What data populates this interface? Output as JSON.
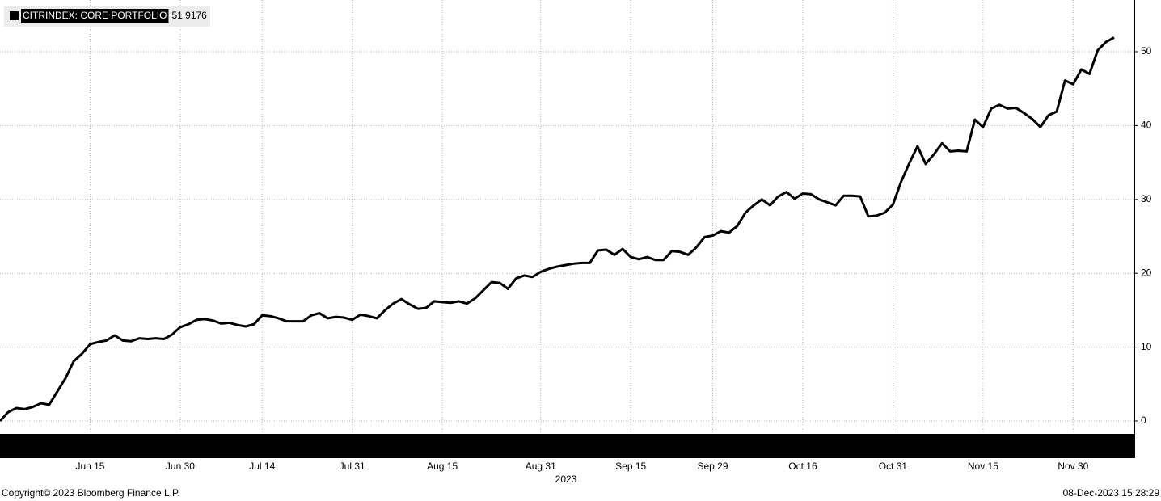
{
  "chart_data": {
    "type": "line",
    "categories": [
      null,
      null,
      null,
      null,
      null,
      null,
      null,
      null,
      null,
      null,
      null,
      "Jun 15",
      null,
      null,
      null,
      null,
      null,
      null,
      null,
      null,
      null,
      null,
      "Jun 30",
      null,
      null,
      null,
      null,
      null,
      null,
      null,
      null,
      null,
      "Jul 14",
      null,
      null,
      null,
      null,
      null,
      null,
      null,
      null,
      null,
      null,
      "Jul 31",
      null,
      null,
      null,
      null,
      null,
      null,
      null,
      null,
      null,
      null,
      "Aug 15",
      null,
      null,
      null,
      null,
      null,
      null,
      null,
      null,
      null,
      null,
      null,
      "Aug 31",
      null,
      null,
      null,
      null,
      null,
      null,
      null,
      null,
      null,
      null,
      "Sep 15",
      null,
      null,
      null,
      null,
      null,
      null,
      null,
      null,
      null,
      "Sep 29",
      null,
      null,
      null,
      null,
      null,
      null,
      null,
      null,
      null,
      null,
      "Oct 16",
      null,
      null,
      null,
      null,
      null,
      null,
      null,
      null,
      null,
      null,
      "Oct 31",
      null,
      null,
      null,
      null,
      null,
      null,
      null,
      null,
      null,
      null,
      "Nov 15",
      null,
      null,
      null,
      null,
      null,
      null,
      null,
      null,
      null,
      null,
      "Nov 30",
      null,
      null,
      null,
      null,
      null
    ],
    "xlabel": "2023",
    "series": [
      {
        "name": "CITRINDEX: CORE PORTFOLIO",
        "color": "#000000",
        "values": [
          0,
          1.2,
          1.75,
          1.6,
          1.9,
          2.4,
          2.2,
          4.0,
          5.8,
          8.1,
          9.1,
          10.4,
          10.7,
          10.9,
          11.6,
          10.9,
          10.8,
          11.2,
          11.1,
          11.2,
          11.1,
          11.7,
          12.7,
          13.1,
          13.7,
          13.8,
          13.6,
          13.2,
          13.3,
          13.0,
          12.8,
          13.1,
          14.3,
          14.2,
          13.9,
          13.5,
          13.5,
          13.5,
          14.3,
          14.6,
          13.9,
          14.1,
          14.0,
          13.7,
          14.4,
          14.2,
          13.9,
          15.0,
          15.9,
          16.5,
          15.8,
          15.2,
          15.3,
          16.2,
          16.1,
          16.0,
          16.2,
          15.9,
          16.6,
          17.7,
          18.8,
          18.7,
          17.9,
          19.3,
          19.7,
          19.5,
          20.2,
          20.6,
          20.9,
          21.1,
          21.3,
          21.4,
          21.4,
          23.1,
          23.2,
          22.5,
          23.3,
          22.2,
          21.9,
          22.2,
          21.8,
          21.8,
          23.0,
          22.9,
          22.5,
          23.5,
          24.9,
          25.1,
          25.7,
          25.5,
          26.4,
          28.2,
          29.2,
          30.0,
          29.2,
          30.4,
          31.0,
          30.1,
          30.8,
          30.7,
          30.0,
          29.6,
          29.2,
          30.5,
          30.5,
          30.4,
          27.7,
          27.8,
          28.2,
          29.3,
          32.4,
          34.9,
          37.2,
          34.8,
          36.1,
          37.6,
          36.5,
          36.6,
          36.5,
          40.8,
          39.8,
          42.3,
          42.8,
          42.3,
          42.4,
          41.7,
          40.9,
          39.8,
          41.4,
          41.9,
          46.1,
          45.6,
          47.6,
          47.0,
          50.2,
          51.3,
          51.9176
        ]
      }
    ],
    "ylim": [
      -1.75,
      57
    ],
    "yticks": [
      0,
      10,
      20,
      30,
      40,
      50
    ],
    "grid": true
  },
  "footer": {
    "copyright": "Copyright© 2023 Bloomberg Finance L.P.",
    "timestamp": "08-Dec-2023 15:28:29"
  }
}
